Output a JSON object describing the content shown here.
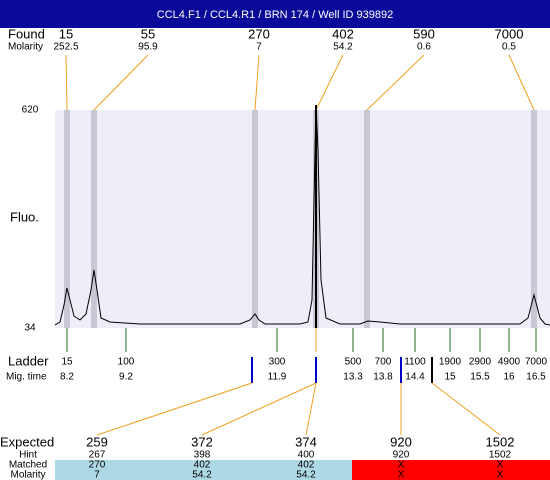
{
  "header": {
    "title": "CCL4.F1 / CCL4.R1 / BRN 174 / Well ID 939892"
  },
  "found": {
    "label": "Found",
    "sublabel": "Molarity",
    "peaks": [
      {
        "size": 15,
        "molarity": 252.5
      },
      {
        "size": 55,
        "molarity": 95.9
      },
      {
        "size": 270,
        "molarity": 7
      },
      {
        "size": 402,
        "molarity": 54.2
      },
      {
        "size": 590,
        "molarity": 0.6
      },
      {
        "size": 7000,
        "molarity": 0.5
      }
    ]
  },
  "axis": {
    "label": "Fluo.",
    "top": 620,
    "bottom": 34
  },
  "ladder": {
    "label": "Ladder",
    "sublabel": "Mig. time",
    "items": [
      {
        "size": 15,
        "time": 8.2
      },
      {
        "size": 100,
        "time": 9.2
      },
      {
        "size": 300,
        "time": 11.9
      },
      {
        "size": 500,
        "time": 13.3
      },
      {
        "size": 700,
        "time": 13.8
      },
      {
        "size": 1100,
        "time": 14.4
      },
      {
        "size": 1900,
        "time": 15
      },
      {
        "size": 2900,
        "time": 15.5
      },
      {
        "size": 4900,
        "time": 16
      },
      {
        "size": 7000,
        "time": 16.5
      }
    ]
  },
  "expected": {
    "labels": {
      "expected": "Expected",
      "hint": "Hint",
      "matched": "Matched",
      "molarity": "Molarity"
    },
    "items": [
      {
        "expected": 259,
        "hint": 267,
        "matched": 270,
        "molarity": 7
      },
      {
        "expected": 372,
        "hint": 398,
        "matched": 402,
        "molarity": 54.2
      },
      {
        "expected": 374,
        "hint": 400,
        "matched": 402,
        "molarity": 54.2
      },
      {
        "expected": 920,
        "hint": 920,
        "matched": "X",
        "molarity": "X"
      },
      {
        "expected": 1502,
        "hint": 1502,
        "matched": "X",
        "molarity": "X"
      }
    ]
  }
}
